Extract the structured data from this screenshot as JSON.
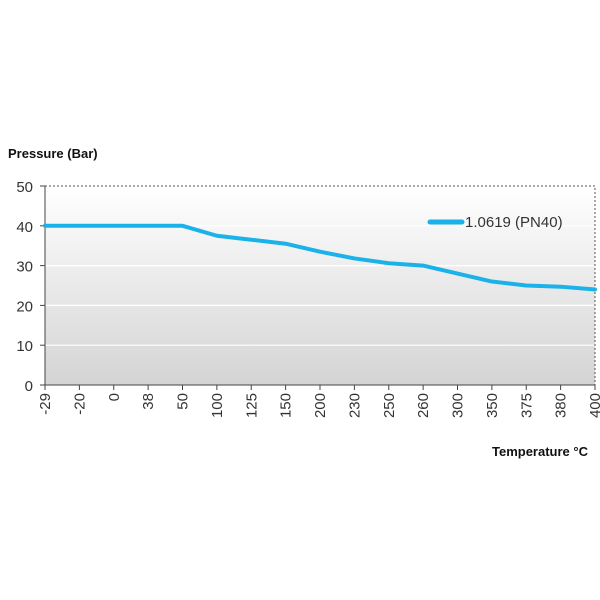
{
  "chart_data": {
    "type": "line",
    "ylabel": "Pressure (Bar)",
    "xlabel": "Temperature °C",
    "categories": [
      "-29",
      "-20",
      "0",
      "38",
      "50",
      "100",
      "125",
      "150",
      "200",
      "230",
      "250",
      "260",
      "300",
      "350",
      "375",
      "380",
      "400"
    ],
    "series": [
      {
        "name": "1.0619 (PN40)",
        "color": "#1ab2e8",
        "values": [
          40,
          40,
          40,
          40,
          40,
          37.5,
          36.5,
          35.5,
          33.5,
          31.8,
          30.6,
          30,
          28,
          26,
          25,
          24.7,
          24
        ]
      }
    ],
    "ylim": [
      0,
      50
    ],
    "yticks": [
      0,
      10,
      20,
      30,
      40,
      50
    ],
    "grid": "horizontal",
    "legend": "top-right"
  }
}
